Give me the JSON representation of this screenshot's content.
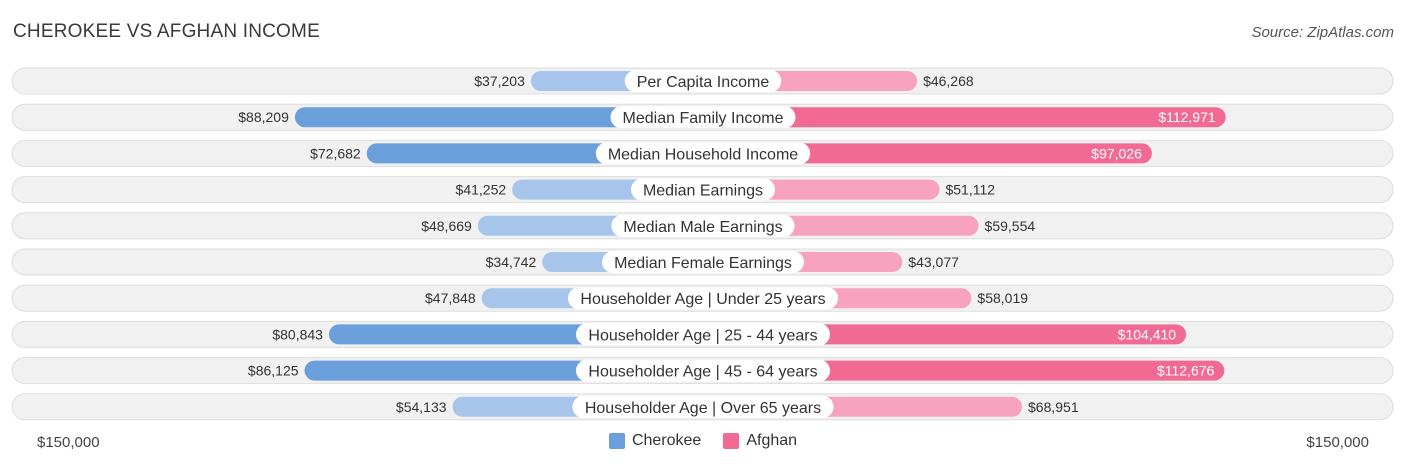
{
  "title": "CHEROKEE VS AFGHAN INCOME",
  "source": "Source: ZipAtlas.com",
  "colors": {
    "cherokee_strong": "#6a9fdc",
    "cherokee_light": "#a7c5ea",
    "afghan_strong": "#f06a94",
    "afghan_light": "#f7a3bf",
    "row_bg": "#f1f1f1",
    "row_border": "#dddddd"
  },
  "chart_data": {
    "type": "bar",
    "orientation": "horizontal-diverging",
    "categories": [
      "Per Capita Income",
      "Median Family Income",
      "Median Household Income",
      "Median Earnings",
      "Median Male Earnings",
      "Median Female Earnings",
      "Householder Age | Under 25 years",
      "Householder Age | 25 - 44 years",
      "Householder Age | 45 - 64 years",
      "Householder Age | Over 65 years"
    ],
    "series": [
      {
        "name": "Cherokee",
        "values": [
          37203,
          88209,
          72682,
          41252,
          48669,
          34742,
          47848,
          80843,
          86125,
          54133
        ],
        "labels": [
          "$37,203",
          "$88,209",
          "$72,682",
          "$41,252",
          "$48,669",
          "$34,742",
          "$47,848",
          "$80,843",
          "$86,125",
          "$54,133"
        ]
      },
      {
        "name": "Afghan",
        "values": [
          46268,
          112971,
          97026,
          51112,
          59554,
          43077,
          58019,
          104410,
          112676,
          68951
        ],
        "labels": [
          "$46,268",
          "$112,971",
          "$97,026",
          "$51,112",
          "$59,554",
          "$43,077",
          "$58,019",
          "$104,410",
          "$112,676",
          "$68,951"
        ]
      }
    ],
    "xlim": [
      -150000,
      150000
    ],
    "axis_labels": {
      "left": "$150,000",
      "right": "$150,000"
    },
    "legend": [
      "Cherokee",
      "Afghan"
    ],
    "legend_position": "bottom-center",
    "strong_threshold": 70000
  }
}
